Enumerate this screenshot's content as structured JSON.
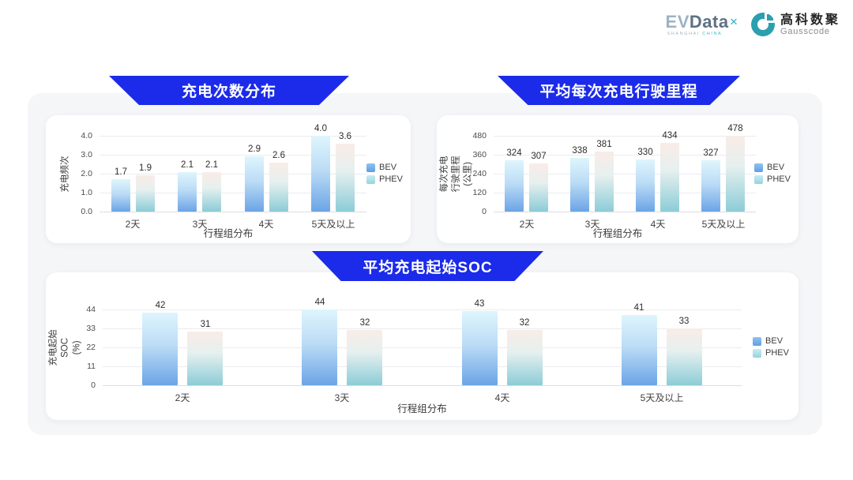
{
  "header": {
    "evdata": {
      "ev": "EV",
      "data": "Data",
      "x": "✕",
      "sub_left": "SHANGHAI",
      "sub_right": "CHINA"
    },
    "gausscode": {
      "cn": "高科数聚",
      "en": "Gausscode"
    }
  },
  "colors": {
    "banner_blue": "#1b2be9",
    "panel_bg": "#f5f6f8",
    "card_bg": "#ffffff",
    "bev_bar_top": "#def5fc",
    "bev_bar_bottom": "#6ba4e6",
    "phev_bar_top": "#f9ece7",
    "phev_bar_bottom": "#8cccd7",
    "bev_legend": "#6aa7e8",
    "phev_legend": "#9fd8e6"
  },
  "chart_data": [
    {
      "type": "bar",
      "title": "充电次数分布",
      "xlabel": "行程组分布",
      "ylabel": "充电频次",
      "categories": [
        "2天",
        "3天",
        "4天",
        "5天及以上"
      ],
      "series": [
        {
          "name": "BEV",
          "values": [
            1.7,
            2.1,
            2.9,
            4.0
          ],
          "labels": [
            "1.7",
            "2.1",
            "2.9",
            "4.0"
          ]
        },
        {
          "name": "PHEV",
          "values": [
            1.9,
            2.1,
            2.6,
            3.6
          ],
          "labels": [
            "1.9",
            "2.1",
            "2.6",
            "3.6"
          ]
        }
      ],
      "yticks": [
        "0.0",
        "1.0",
        "2.0",
        "3.0",
        "4.0"
      ],
      "ylim": [
        0,
        4
      ],
      "grid": true,
      "legend_position": "right"
    },
    {
      "type": "bar",
      "title": "平均每次充电行驶里程",
      "xlabel": "行程组分布",
      "ylabel": "每次充电行驶里程\n(公里)",
      "categories": [
        "2天",
        "3天",
        "4天",
        "5天及以上"
      ],
      "series": [
        {
          "name": "BEV",
          "values": [
            324,
            338,
            330,
            327
          ],
          "labels": [
            "324",
            "338",
            "330",
            "327"
          ]
        },
        {
          "name": "PHEV",
          "values": [
            307,
            381,
            434,
            478
          ],
          "labels": [
            "307",
            "381",
            "434",
            "478"
          ]
        }
      ],
      "yticks": [
        "0",
        "120",
        "240",
        "360",
        "480"
      ],
      "ylim": [
        0,
        480
      ],
      "grid": true,
      "legend_position": "right"
    },
    {
      "type": "bar",
      "title": "平均充电起始SOC",
      "xlabel": "行程组分布",
      "ylabel": "充电起始SOC\n(%)",
      "categories": [
        "2天",
        "3天",
        "4天",
        "5天及以上"
      ],
      "series": [
        {
          "name": "BEV",
          "values": [
            42,
            44,
            43,
            41
          ],
          "labels": [
            "42",
            "44",
            "43",
            "41"
          ]
        },
        {
          "name": "PHEV",
          "values": [
            31,
            32,
            32,
            33
          ],
          "labels": [
            "31",
            "32",
            "32",
            "33"
          ]
        }
      ],
      "yticks": [
        "0",
        "11",
        "22",
        "33",
        "44"
      ],
      "ylim": [
        0,
        44
      ],
      "grid": true,
      "legend_position": "right"
    }
  ]
}
